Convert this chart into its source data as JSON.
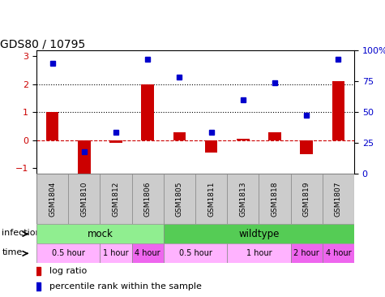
{
  "title": "GDS80 / 10795",
  "samples": [
    "GSM1804",
    "GSM1810",
    "GSM1812",
    "GSM1806",
    "GSM1805",
    "GSM1811",
    "GSM1813",
    "GSM1818",
    "GSM1819",
    "GSM1807"
  ],
  "log_ratio": [
    1.0,
    -1.3,
    -0.1,
    2.0,
    0.3,
    -0.45,
    0.05,
    0.3,
    -0.5,
    2.1
  ],
  "percentile_left_axis": [
    2.75,
    -0.42,
    0.3,
    2.9,
    2.25,
    0.28,
    1.45,
    2.05,
    0.88,
    2.9
  ],
  "infection_groups": [
    {
      "label": "mock",
      "start": 0,
      "end": 4,
      "color": "#90EE90"
    },
    {
      "label": "wildtype",
      "start": 4,
      "end": 10,
      "color": "#55CC55"
    }
  ],
  "time_groups": [
    {
      "label": "0.5 hour",
      "start": 0,
      "end": 2,
      "color": "#FFB3FF"
    },
    {
      "label": "1 hour",
      "start": 2,
      "end": 3,
      "color": "#FFB3FF"
    },
    {
      "label": "4 hour",
      "start": 3,
      "end": 4,
      "color": "#EE66EE"
    },
    {
      "label": "0.5 hour",
      "start": 4,
      "end": 6,
      "color": "#FFB3FF"
    },
    {
      "label": "1 hour",
      "start": 6,
      "end": 8,
      "color": "#FFB3FF"
    },
    {
      "label": "2 hour",
      "start": 8,
      "end": 9,
      "color": "#EE66EE"
    },
    {
      "label": "4 hour",
      "start": 9,
      "end": 10,
      "color": "#EE66EE"
    }
  ],
  "bar_color": "#CC0000",
  "dot_color": "#0000CC",
  "ylim_left": [
    -1.2,
    3.2
  ],
  "ylim_right": [
    0,
    100
  ],
  "yticks_left": [
    -1,
    0,
    1,
    2,
    3
  ],
  "yticks_right": [
    0,
    25,
    50,
    75,
    100
  ],
  "dotted_lines": [
    1.0,
    2.0
  ],
  "dashed_line_y": 0.0,
  "n_samples": 10,
  "sample_box_color": "#CCCCCC",
  "fig_width": 4.75,
  "fig_height": 3.66,
  "dpi": 100
}
